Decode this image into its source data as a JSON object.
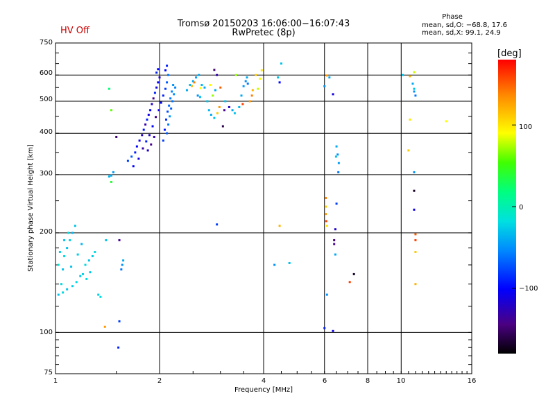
{
  "header": {
    "title_line1": "Tromsø 20150203 16:06:00−16:07:43",
    "title_line2": "RwPretec (8p)",
    "hv_status": "HV Off",
    "hv_color": "#cc0000"
  },
  "phase_stats": {
    "title": "Phase",
    "o_line": "mean, sd,O: −68.8, 17.6",
    "x_line": "mean, sd,X:  99.1, 24.9"
  },
  "colorbar": {
    "unit": "[deg]",
    "ticks": [
      "100",
      "0",
      "−100"
    ],
    "range": [
      -180,
      180
    ]
  },
  "chart_data": {
    "type": "scatter",
    "xlabel": "Frequency [MHz]",
    "ylabel": "Stationary phase Virtual Height [km]",
    "x_scale": "log",
    "y_scale": "log",
    "xlim": [
      1,
      16
    ],
    "ylim": [
      75,
      750
    ],
    "x_ticks": [
      "1",
      "2",
      "4",
      "6",
      "8",
      "10",
      "16"
    ],
    "y_ticks": [
      "750",
      "600",
      "500",
      "400",
      "300",
      "200",
      "100",
      "75"
    ],
    "grid": true,
    "points": [
      [
        1.02,
        130,
        -30
      ],
      [
        1.04,
        140,
        -20
      ],
      [
        1.05,
        155,
        -30
      ],
      [
        1.06,
        170,
        -20
      ],
      [
        1.08,
        180,
        -30
      ],
      [
        1.1,
        190,
        -25
      ],
      [
        1.12,
        200,
        -35
      ],
      [
        1.14,
        210,
        -30
      ],
      [
        1.05,
        132,
        -20
      ],
      [
        1.08,
        135,
        -30
      ],
      [
        1.12,
        138,
        -25
      ],
      [
        1.15,
        142,
        -20
      ],
      [
        1.18,
        148,
        -30
      ],
      [
        1.2,
        150,
        -25
      ],
      [
        1.22,
        160,
        -20
      ],
      [
        1.25,
        165,
        -30
      ],
      [
        1.28,
        170,
        -25
      ],
      [
        1.3,
        175,
        -20
      ],
      [
        1.02,
        160,
        -15
      ],
      [
        1.03,
        175,
        -25
      ],
      [
        1.06,
        190,
        -30
      ],
      [
        1.09,
        200,
        -20
      ],
      [
        1.11,
        158,
        -30
      ],
      [
        1.16,
        172,
        -25
      ],
      [
        1.19,
        185,
        -35
      ],
      [
        1.23,
        145,
        -20
      ],
      [
        1.26,
        152,
        -30
      ],
      [
        1.33,
        130,
        -25
      ],
      [
        1.35,
        128,
        -20
      ],
      [
        1.4,
        190,
        -30
      ],
      [
        1.43,
        296,
        -35
      ],
      [
        1.45,
        298,
        -40
      ],
      [
        1.47,
        305,
        -45
      ],
      [
        1.45,
        285,
        40
      ],
      [
        1.45,
        470,
        60
      ],
      [
        1.43,
        545,
        20
      ],
      [
        1.55,
        155,
        -60
      ],
      [
        1.56,
        160,
        -50
      ],
      [
        1.57,
        165,
        -40
      ],
      [
        1.53,
        190,
        -140
      ],
      [
        1.53,
        108,
        -80
      ],
      [
        1.52,
        90,
        -90
      ],
      [
        1.39,
        104,
        130
      ],
      [
        1.5,
        390,
        -150
      ],
      [
        1.62,
        330,
        -80
      ],
      [
        1.66,
        340,
        -70
      ],
      [
        1.7,
        350,
        -90
      ],
      [
        1.72,
        365,
        -100
      ],
      [
        1.75,
        380,
        -110
      ],
      [
        1.78,
        395,
        -120
      ],
      [
        1.8,
        410,
        -95
      ],
      [
        1.82,
        425,
        -130
      ],
      [
        1.84,
        440,
        -90
      ],
      [
        1.86,
        455,
        -110
      ],
      [
        1.88,
        470,
        -100
      ],
      [
        1.9,
        490,
        -120
      ],
      [
        1.92,
        510,
        -140
      ],
      [
        1.94,
        530,
        -90
      ],
      [
        1.96,
        550,
        -110
      ],
      [
        1.98,
        570,
        -100
      ],
      [
        2.0,
        590,
        -120
      ],
      [
        1.96,
        610,
        -90
      ],
      [
        1.98,
        625,
        -100
      ],
      [
        1.68,
        318,
        -100
      ],
      [
        1.74,
        335,
        -110
      ],
      [
        1.79,
        360,
        -130
      ],
      [
        1.83,
        378,
        -90
      ],
      [
        1.87,
        395,
        -120
      ],
      [
        1.91,
        420,
        -100
      ],
      [
        1.95,
        448,
        -140
      ],
      [
        1.99,
        470,
        -110
      ],
      [
        2.02,
        495,
        -100
      ],
      [
        2.05,
        520,
        -90
      ],
      [
        2.08,
        545,
        -80
      ],
      [
        2.1,
        570,
        -70
      ],
      [
        2.12,
        600,
        -60
      ],
      [
        2.08,
        620,
        -100
      ],
      [
        2.1,
        640,
        -90
      ],
      [
        2.1,
        400,
        -70
      ],
      [
        2.12,
        425,
        -60
      ],
      [
        2.14,
        450,
        -50
      ],
      [
        2.16,
        475,
        -70
      ],
      [
        2.18,
        500,
        -60
      ],
      [
        2.2,
        525,
        -50
      ],
      [
        2.22,
        550,
        -55
      ],
      [
        2.05,
        380,
        -80
      ],
      [
        2.07,
        410,
        -95
      ],
      [
        2.09,
        440,
        -85
      ],
      [
        2.11,
        465,
        -75
      ],
      [
        2.13,
        485,
        -65
      ],
      [
        2.15,
        510,
        -60
      ],
      [
        2.17,
        535,
        -55
      ],
      [
        2.19,
        560,
        -50
      ],
      [
        1.93,
        390,
        -130
      ],
      [
        1.89,
        370,
        -140
      ],
      [
        1.85,
        355,
        -120
      ],
      [
        2.4,
        540,
        -40
      ],
      [
        2.45,
        560,
        -35
      ],
      [
        2.5,
        575,
        -40
      ],
      [
        2.55,
        590,
        -45
      ],
      [
        2.6,
        600,
        -40
      ],
      [
        2.65,
        560,
        -35
      ],
      [
        2.7,
        550,
        -40
      ],
      [
        2.58,
        520,
        -50
      ],
      [
        2.62,
        515,
        -35
      ],
      [
        2.52,
        570,
        140
      ],
      [
        2.48,
        556,
        120
      ],
      [
        2.63,
        548,
        90
      ],
      [
        2.8,
        560,
        90
      ],
      [
        2.85,
        520,
        70
      ],
      [
        2.9,
        540,
        -40
      ],
      [
        2.75,
        500,
        -30
      ],
      [
        2.78,
        470,
        -35
      ],
      [
        2.82,
        455,
        -40
      ],
      [
        2.88,
        445,
        -30
      ],
      [
        2.94,
        460,
        110
      ],
      [
        2.98,
        480,
        130
      ],
      [
        2.88,
        622,
        -150
      ],
      [
        2.93,
        600,
        -130
      ],
      [
        3.0,
        550,
        150
      ],
      [
        3.05,
        420,
        -160
      ],
      [
        3.08,
        470,
        -140
      ],
      [
        3.1,
        500,
        -30
      ],
      [
        3.18,
        480,
        -120
      ],
      [
        3.25,
        470,
        -40
      ],
      [
        3.3,
        460,
        -30
      ],
      [
        3.4,
        480,
        -35
      ],
      [
        3.45,
        520,
        -40
      ],
      [
        3.5,
        555,
        -45
      ],
      [
        3.55,
        575,
        -50
      ],
      [
        3.58,
        590,
        -40
      ],
      [
        3.65,
        500,
        130
      ],
      [
        3.7,
        520,
        140
      ],
      [
        3.72,
        540,
        120
      ],
      [
        3.8,
        600,
        110
      ],
      [
        3.85,
        545,
        80
      ],
      [
        3.9,
        585,
        90
      ],
      [
        3.95,
        620,
        100
      ],
      [
        3.6,
        565,
        -60
      ],
      [
        3.33,
        600,
        70
      ],
      [
        3.48,
        490,
        160
      ],
      [
        2.93,
        212,
        -80
      ],
      [
        4.4,
        590,
        -30
      ],
      [
        4.45,
        570,
        -100
      ],
      [
        4.5,
        650,
        -30
      ],
      [
        4.3,
        160,
        -50
      ],
      [
        4.75,
        162,
        -30
      ],
      [
        4.45,
        210,
        120
      ],
      [
        6.0,
        555,
        -50
      ],
      [
        6.1,
        598,
        130
      ],
      [
        6.2,
        590,
        -40
      ],
      [
        6.35,
        525,
        -110
      ],
      [
        6.5,
        365,
        -40
      ],
      [
        6.55,
        345,
        -50
      ],
      [
        6.6,
        325,
        -45
      ],
      [
        6.58,
        305,
        -60
      ],
      [
        6.48,
        340,
        -30
      ],
      [
        6.05,
        255,
        140
      ],
      [
        6.05,
        240,
        110
      ],
      [
        6.05,
        228,
        130
      ],
      [
        6.07,
        217,
        160
      ],
      [
        6.1,
        210,
        100
      ],
      [
        6.45,
        205,
        -120
      ],
      [
        6.4,
        190,
        -150
      ],
      [
        6.4,
        185,
        -140
      ],
      [
        6.45,
        172,
        -40
      ],
      [
        6.5,
        245,
        -80
      ],
      [
        6.1,
        130,
        -50
      ],
      [
        6.0,
        103,
        -90
      ],
      [
        6.35,
        101,
        -110
      ],
      [
        7.1,
        142,
        160
      ],
      [
        7.3,
        150,
        -170
      ],
      [
        10.1,
        600,
        -30
      ],
      [
        10.6,
        595,
        120
      ],
      [
        10.8,
        565,
        -40
      ],
      [
        10.9,
        545,
        -30
      ],
      [
        10.9,
        535,
        -50
      ],
      [
        11.0,
        520,
        -60
      ],
      [
        10.6,
        440,
        100
      ],
      [
        10.5,
        355,
        110
      ],
      [
        10.9,
        305,
        -50
      ],
      [
        10.9,
        268,
        -170
      ],
      [
        10.9,
        235,
        -110
      ],
      [
        11.0,
        198,
        150
      ],
      [
        11.0,
        190,
        160
      ],
      [
        11.0,
        175,
        110
      ],
      [
        11.0,
        140,
        120
      ],
      [
        13.5,
        435,
        90
      ],
      [
        10.9,
        612,
        80
      ]
    ]
  }
}
